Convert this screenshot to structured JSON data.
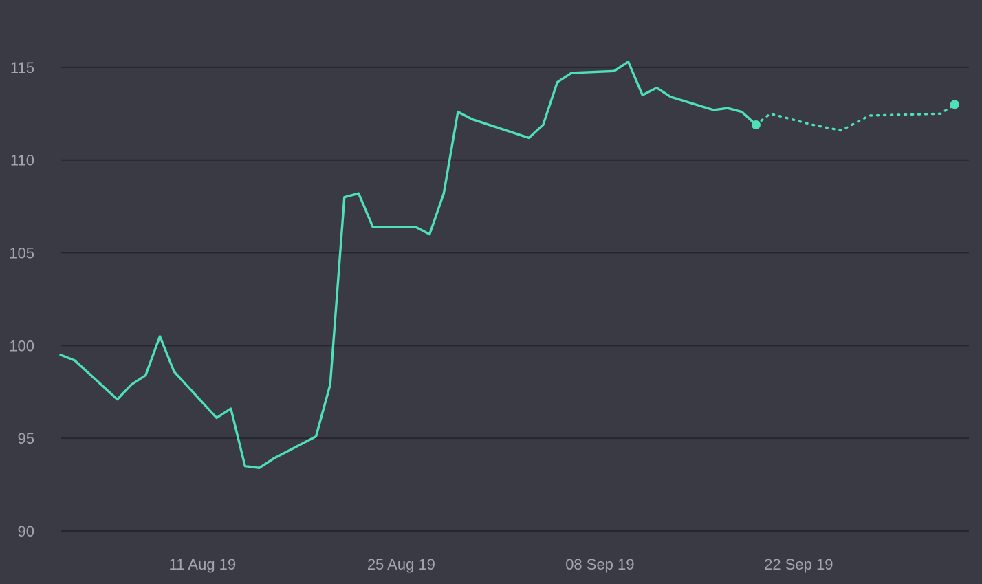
{
  "chart_data": {
    "type": "line",
    "x_axis": {
      "type": "date",
      "ticks": [
        "2019-08-11",
        "2019-08-25",
        "2019-09-08",
        "2019-09-22"
      ],
      "tick_labels": [
        "11 Aug 19",
        "25 Aug 19",
        "08 Sep 19",
        "22 Sep 19"
      ],
      "range": [
        "2019-08-01",
        "2019-10-04"
      ]
    },
    "y_axis": {
      "ticks": [
        90,
        95,
        100,
        105,
        110,
        115
      ],
      "tick_labels": [
        "90",
        "95",
        "100",
        "105",
        "110",
        "115"
      ],
      "ylim": [
        90,
        118
      ]
    },
    "grid": true,
    "colors": {
      "background": "#3a3a45",
      "gridline": "#26262d",
      "tick_label": "#a4a4ae",
      "series": "#4fe0b6"
    },
    "series": [
      {
        "style": "solid",
        "points": [
          [
            "2019-08-01",
            99.5
          ],
          [
            "2019-08-02",
            99.2
          ],
          [
            "2019-08-05",
            97.1
          ],
          [
            "2019-08-06",
            97.9
          ],
          [
            "2019-08-07",
            98.4
          ],
          [
            "2019-08-08",
            100.5
          ],
          [
            "2019-08-09",
            98.6
          ],
          [
            "2019-08-12",
            96.1
          ],
          [
            "2019-08-13",
            96.6
          ],
          [
            "2019-08-14",
            93.5
          ],
          [
            "2019-08-15",
            93.4
          ],
          [
            "2019-08-16",
            93.9
          ],
          [
            "2019-08-19",
            95.1
          ],
          [
            "2019-08-20",
            97.9
          ],
          [
            "2019-08-21",
            108.0
          ],
          [
            "2019-08-22",
            108.2
          ],
          [
            "2019-08-23",
            106.4
          ],
          [
            "2019-08-26",
            106.4
          ],
          [
            "2019-08-27",
            106.0
          ],
          [
            "2019-08-28",
            108.2
          ],
          [
            "2019-08-29",
            112.6
          ],
          [
            "2019-08-30",
            112.2
          ],
          [
            "2019-09-03",
            111.2
          ],
          [
            "2019-09-04",
            111.9
          ],
          [
            "2019-09-05",
            114.2
          ],
          [
            "2019-09-06",
            114.7
          ],
          [
            "2019-09-09",
            114.8
          ],
          [
            "2019-09-10",
            115.3
          ],
          [
            "2019-09-11",
            113.5
          ],
          [
            "2019-09-12",
            113.9
          ],
          [
            "2019-09-13",
            113.4
          ],
          [
            "2019-09-16",
            112.7
          ],
          [
            "2019-09-17",
            112.8
          ],
          [
            "2019-09-18",
            112.6
          ],
          [
            "2019-09-19",
            111.9
          ]
        ]
      },
      {
        "style": "dotted",
        "points": [
          [
            "2019-09-19",
            111.9
          ],
          [
            "2019-09-20",
            112.5
          ],
          [
            "2019-09-23",
            111.9
          ],
          [
            "2019-09-25",
            111.6
          ],
          [
            "2019-09-27",
            112.4
          ],
          [
            "2019-10-02",
            112.5
          ],
          [
            "2019-10-03",
            113.0
          ]
        ]
      }
    ],
    "markers": [
      [
        "2019-09-19",
        111.9
      ],
      [
        "2019-10-03",
        113.0
      ]
    ]
  }
}
